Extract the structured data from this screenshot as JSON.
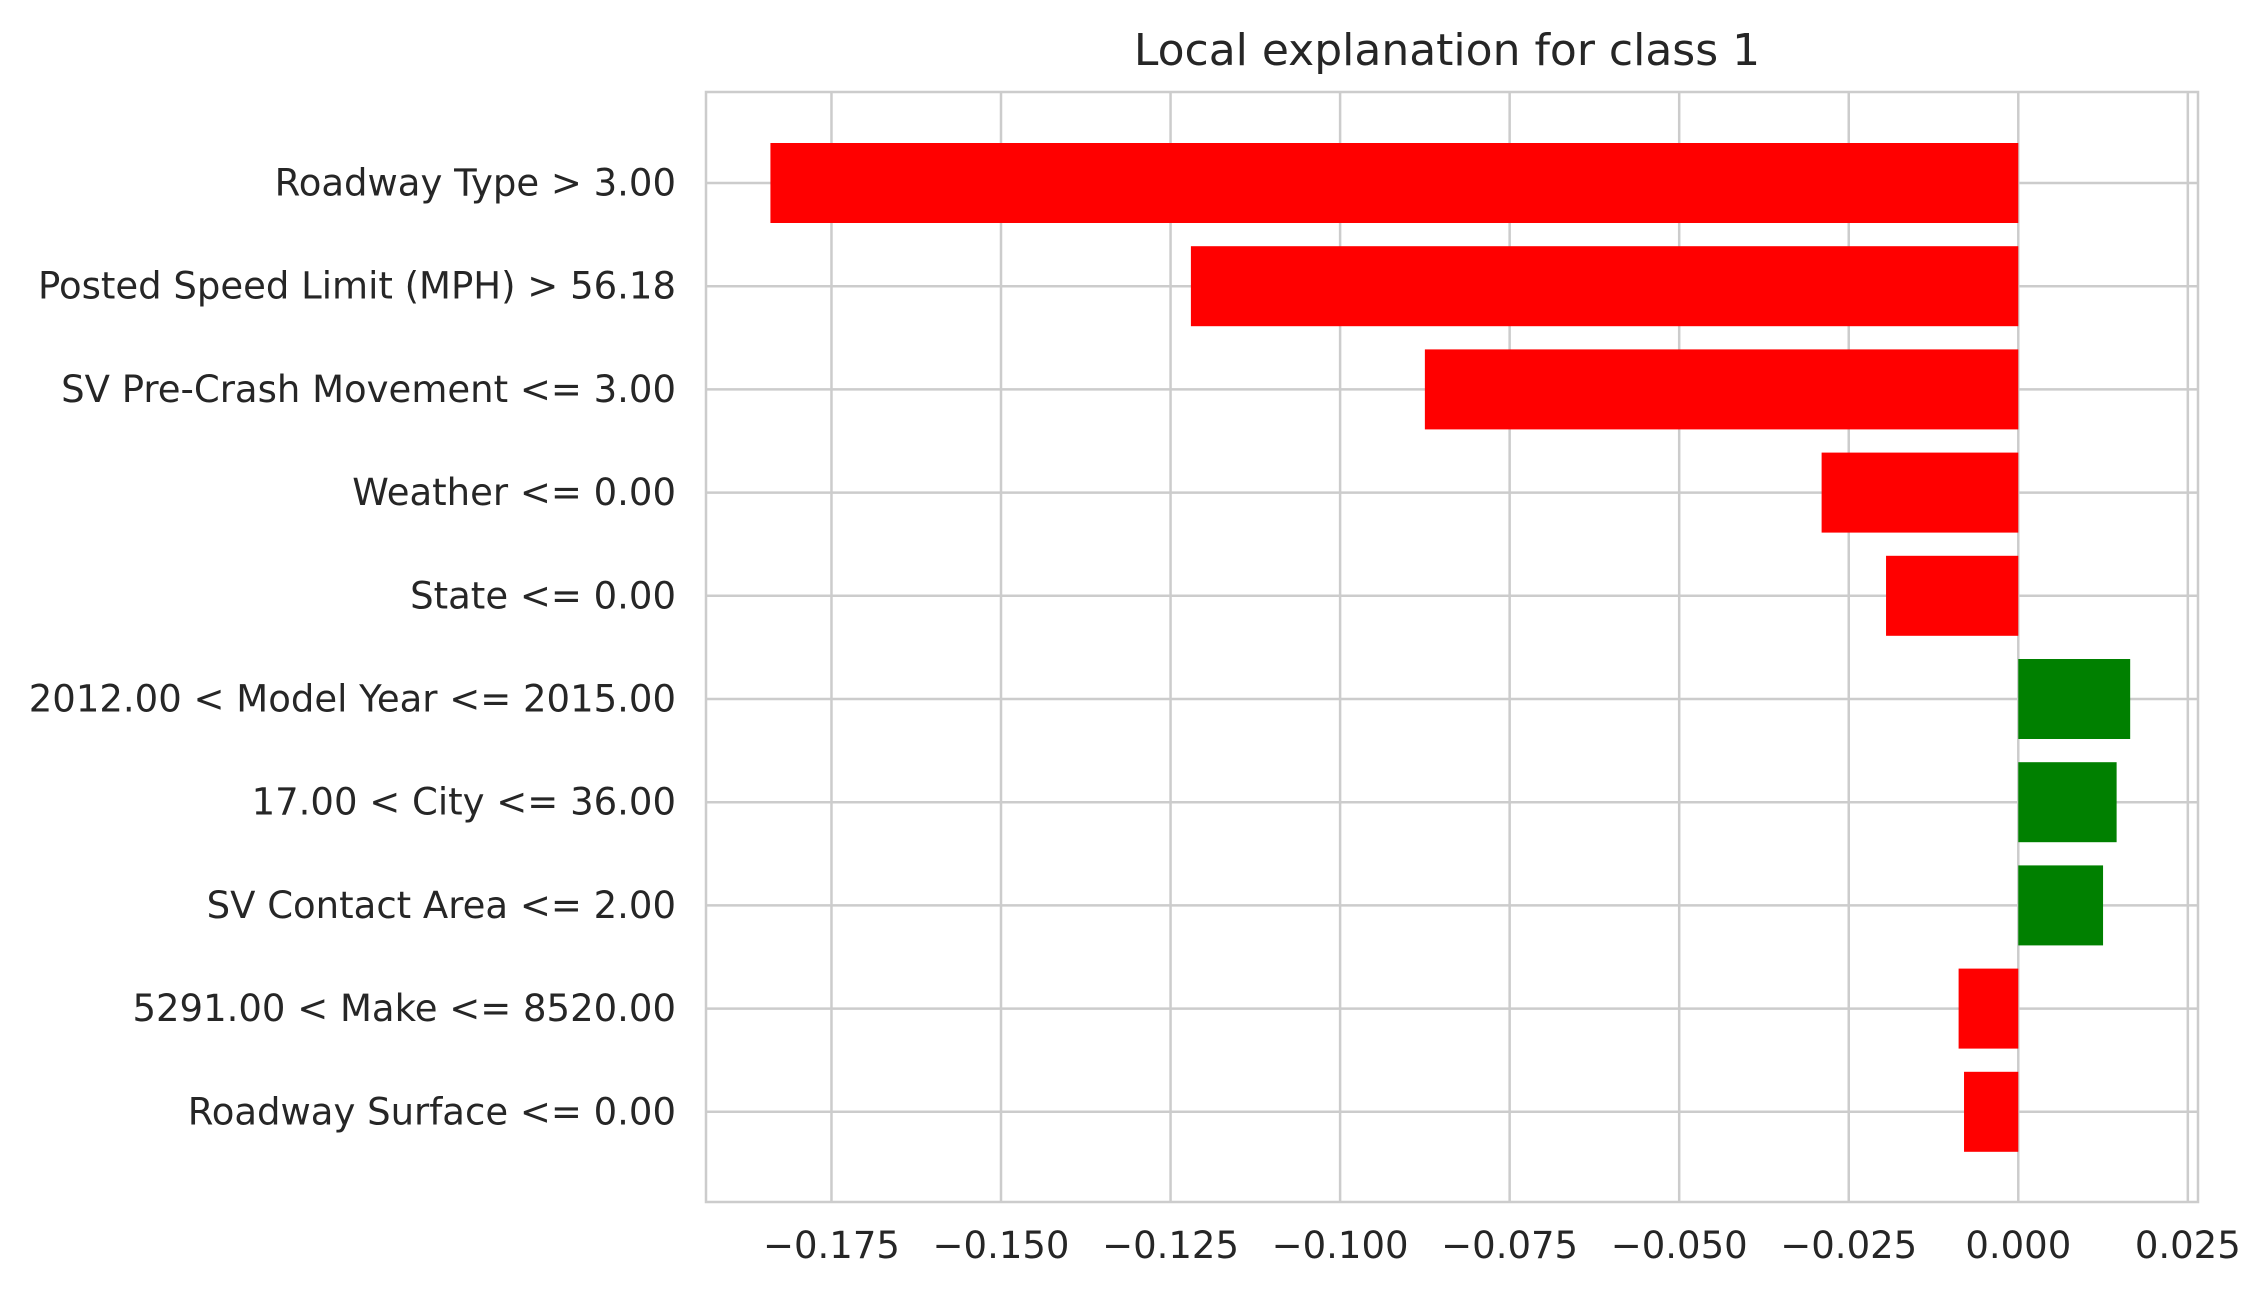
{
  "chart_data": {
    "type": "bar",
    "orientation": "horizontal",
    "title": "Local explanation for class 1",
    "xlabel": "",
    "ylabel": "",
    "xlim": [
      -0.1935,
      0.0265
    ],
    "grid": true,
    "categories": [
      "Roadway Type > 3.00",
      "Posted Speed Limit (MPH) > 56.18",
      "SV Pre-Crash Movement <= 3.00",
      "Weather <= 0.00",
      "State <= 0.00",
      "2012.00 < Model Year <= 2015.00",
      "17.00 < City <= 36.00",
      "SV Contact Area <= 2.00",
      "5291.00 < Make <= 8520.00",
      "Roadway Surface <= 0.00"
    ],
    "values": [
      -0.184,
      -0.122,
      -0.0875,
      -0.029,
      -0.0195,
      0.0165,
      0.0145,
      0.0125,
      -0.0088,
      -0.008
    ],
    "xticks": [
      -0.175,
      -0.15,
      -0.125,
      -0.1,
      -0.075,
      -0.05,
      -0.025,
      0.0,
      0.025
    ],
    "xtick_labels": [
      "−0.175",
      "−0.150",
      "−0.125",
      "−0.100",
      "−0.075",
      "−0.050",
      "−0.025",
      "0.000",
      "0.025"
    ],
    "colors": {
      "positive": "#008000",
      "negative": "#ff0000",
      "grid": "#cccccc",
      "spine": "#cccccc",
      "text": "#262626"
    }
  }
}
